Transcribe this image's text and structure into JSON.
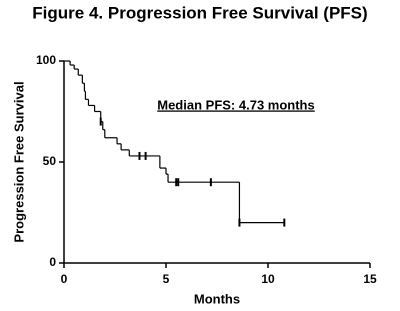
{
  "chart_data": {
    "type": "step",
    "title": "Figure 4. Progression Free Survival (PFS)",
    "title_color": "#3b5c9c",
    "x_label": "Months",
    "y_label": "Progression Free Survival",
    "annotation": "Median PFS: 4.73 months",
    "x": [
      0,
      0.3,
      0.5,
      0.7,
      0.9,
      1.0,
      1.05,
      1.2,
      1.5,
      1.8,
      1.9,
      2.0,
      2.6,
      2.8,
      3.2,
      4.7,
      5.0,
      5.1,
      8.6,
      10.8
    ],
    "values": [
      100,
      98,
      96,
      93,
      89,
      85,
      81,
      78,
      75,
      70,
      66,
      62,
      59,
      56,
      53,
      47,
      44,
      40,
      20,
      20
    ],
    "censored": {
      "x": [
        1.8,
        3.7,
        4.0,
        5.5,
        5.6,
        7.2,
        8.6,
        10.8
      ],
      "values": [
        70,
        53,
        53,
        40,
        40,
        40,
        20,
        20
      ]
    },
    "color": "#000000",
    "xlim": [
      0,
      15
    ],
    "xticks": [
      0,
      5,
      10,
      15
    ],
    "ylim": [
      0,
      100
    ],
    "yticks": [
      0,
      50,
      100
    ]
  }
}
